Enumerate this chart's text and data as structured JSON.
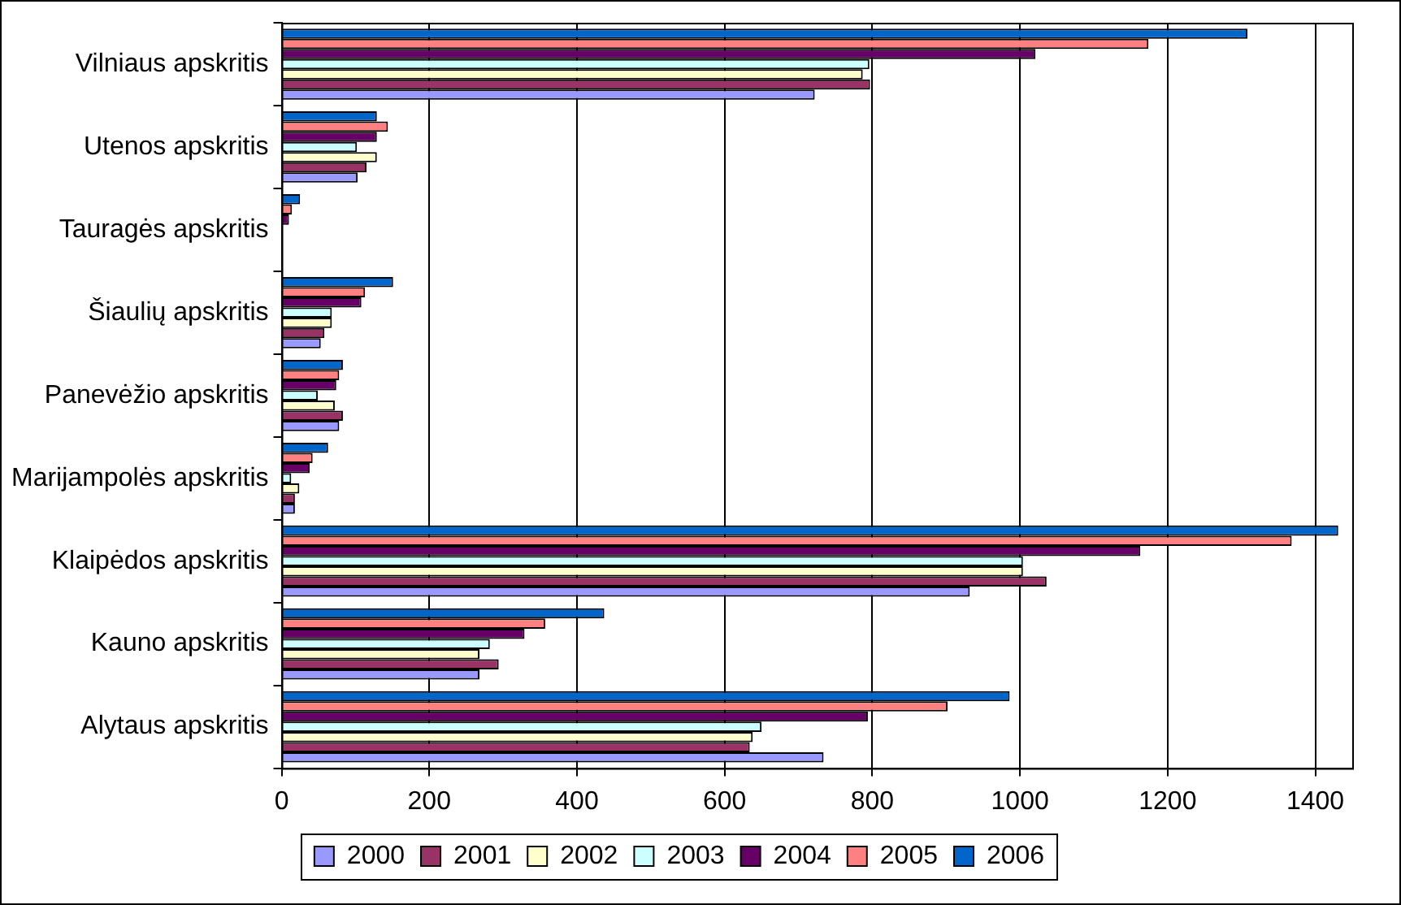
{
  "chart_data": {
    "type": "bar",
    "orientation": "horizontal",
    "categories": [
      "Vilniaus apskritis",
      "Utenos apskritis",
      "Tauragės apskritis",
      "Šiaulių apskritis",
      "Panevėžio apskritis",
      "Marijampolės apskritis",
      "Klaipėdos apskritis",
      "Kauno apskritis",
      "Alytaus apskritis"
    ],
    "series": [
      {
        "name": "2000",
        "color": "#9999ff",
        "values": [
          722,
          103,
          0,
          53,
          78,
          18,
          932,
          268,
          734
        ]
      },
      {
        "name": "2001",
        "color": "#993366",
        "values": [
          797,
          115,
          0,
          58,
          83,
          18,
          1036,
          294,
          634
        ]
      },
      {
        "name": "2002",
        "color": "#ffffcc",
        "values": [
          787,
          129,
          0,
          68,
          72,
          24,
          1004,
          268,
          638
        ]
      },
      {
        "name": "2003",
        "color": "#ccffff",
        "values": [
          796,
          102,
          0,
          68,
          49,
          13,
          1004,
          282,
          650
        ]
      },
      {
        "name": "2004",
        "color": "#660066",
        "values": [
          1021,
          129,
          10,
          108,
          74,
          38,
          1163,
          329,
          794
        ]
      },
      {
        "name": "2005",
        "color": "#ff8080",
        "values": [
          1174,
          144,
          14,
          113,
          78,
          42,
          1368,
          357,
          902
        ]
      },
      {
        "name": "2006",
        "color": "#0066cc",
        "values": [
          1308,
          129,
          25,
          151,
          83,
          63,
          1431,
          437,
          986
        ]
      }
    ],
    "xlim": [
      0,
      1450
    ],
    "xticks": [
      0,
      200,
      400,
      600,
      800,
      1000,
      1200,
      1400
    ],
    "grid": "x",
    "legend": "bottom"
  }
}
